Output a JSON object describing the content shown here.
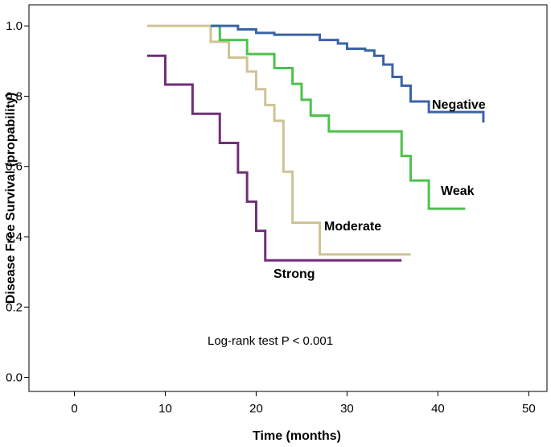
{
  "chart_data": {
    "type": "line",
    "title": "",
    "xlabel": "Time (months)",
    "ylabel": "Disease Free Survival (propability)",
    "xlim": [
      -5,
      52
    ],
    "ylim": [
      -0.04,
      1.06
    ],
    "xticks": [
      0,
      10,
      20,
      30,
      40,
      50
    ],
    "yticks": [
      0.0,
      0.2,
      0.4,
      0.6,
      0.8,
      1.0
    ],
    "xtick_labels": [
      "0",
      "10",
      "20",
      "30",
      "40",
      "50"
    ],
    "ytick_labels": [
      "0.0",
      "0.2",
      "0.4",
      "0.6",
      "0.8",
      "1.0"
    ],
    "grid": false,
    "annotation": "Log-rank test P < 0.001",
    "series": [
      {
        "name": "Negative",
        "label": "Negative",
        "color": "#3b63a6",
        "step": true,
        "x": [
          15,
          18,
          20,
          22,
          24,
          27,
          29,
          30,
          32,
          33,
          34,
          35,
          36,
          37,
          38,
          39,
          45
        ],
        "y": [
          1.0,
          0.99,
          0.98,
          0.975,
          0.975,
          0.96,
          0.95,
          0.935,
          0.93,
          0.915,
          0.89,
          0.855,
          0.83,
          0.785,
          0.785,
          0.755,
          0.725
        ]
      },
      {
        "name": "Weak",
        "label": "Weak",
        "color": "#4dc24d",
        "step": true,
        "x": [
          15,
          16,
          19,
          20,
          22,
          24,
          25,
          26,
          28,
          35,
          36,
          37,
          39,
          43
        ],
        "y": [
          1.0,
          0.96,
          0.92,
          0.92,
          0.88,
          0.835,
          0.79,
          0.745,
          0.7,
          0.7,
          0.63,
          0.56,
          0.48,
          0.48
        ],
        "x_adj": [
          15,
          16,
          19,
          22,
          24,
          25,
          26,
          28,
          36,
          37,
          39,
          43
        ],
        "y_adj": [
          1.0,
          0.96,
          0.92,
          0.88,
          0.835,
          0.79,
          0.745,
          0.7,
          0.63,
          0.56,
          0.48,
          0.48
        ]
      },
      {
        "name": "Moderate",
        "label": "Moderate",
        "color": "#cfc394",
        "step": true,
        "x": [
          8,
          15,
          17,
          19,
          20,
          21,
          22,
          23,
          24,
          27,
          37
        ],
        "y": [
          1.0,
          0.955,
          0.91,
          0.87,
          0.82,
          0.775,
          0.73,
          0.585,
          0.44,
          0.35,
          0.35
        ]
      },
      {
        "name": "Strong",
        "label": "Strong",
        "color": "#6f2f78",
        "step": true,
        "x": [
          8,
          10,
          13,
          16,
          18,
          19,
          20,
          21,
          36
        ],
        "y": [
          0.915,
          0.833,
          0.75,
          0.667,
          0.583,
          0.5,
          0.417,
          0.333,
          0.333
        ]
      }
    ]
  }
}
